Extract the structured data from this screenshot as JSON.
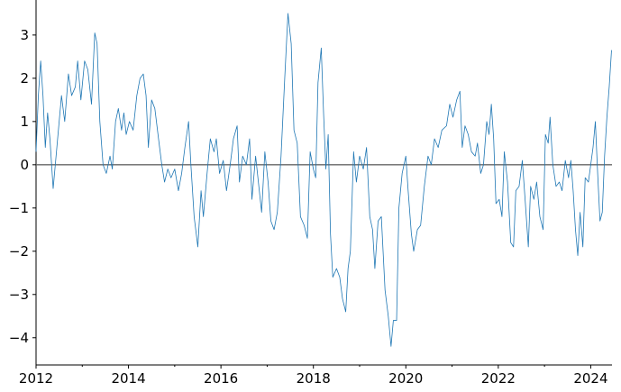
{
  "chart_data": {
    "type": "line",
    "x": [
      2012.0,
      2012.05,
      2012.1,
      2012.15,
      2012.2,
      2012.25,
      2012.3,
      2012.37,
      2012.45,
      2012.55,
      2012.62,
      2012.7,
      2012.77,
      2012.85,
      2012.9,
      2012.97,
      2013.05,
      2013.12,
      2013.2,
      2013.27,
      2013.32,
      2013.38,
      2013.45,
      2013.52,
      2013.6,
      2013.65,
      2013.72,
      2013.78,
      2013.85,
      2013.9,
      2013.95,
      2014.02,
      2014.1,
      2014.18,
      2014.25,
      2014.32,
      2014.38,
      2014.43,
      2014.5,
      2014.57,
      2014.65,
      2014.72,
      2014.78,
      2014.85,
      2014.92,
      2015.0,
      2015.08,
      2015.15,
      2015.22,
      2015.3,
      2015.35,
      2015.42,
      2015.5,
      2015.57,
      2015.62,
      2015.7,
      2015.77,
      2015.85,
      2015.9,
      2015.97,
      2016.05,
      2016.12,
      2016.2,
      2016.27,
      2016.35,
      2016.4,
      2016.47,
      2016.55,
      2016.62,
      2016.67,
      2016.75,
      2016.82,
      2016.88,
      2016.95,
      2017.02,
      2017.08,
      2017.15,
      2017.22,
      2017.3,
      2017.38,
      2017.45,
      2017.52,
      2017.58,
      2017.65,
      2017.72,
      2017.8,
      2017.87,
      2017.93,
      2018.0,
      2018.05,
      2018.1,
      2018.17,
      2018.22,
      2018.27,
      2018.32,
      2018.37,
      2018.42,
      2018.5,
      2018.57,
      2018.63,
      2018.7,
      2018.75,
      2018.8,
      2018.87,
      2018.93,
      2019.0,
      2019.08,
      2019.15,
      2019.22,
      2019.28,
      2019.33,
      2019.4,
      2019.47,
      2019.55,
      2019.62,
      2019.68,
      2019.73,
      2019.8,
      2019.85,
      2019.92,
      2020.0,
      2020.05,
      2020.12,
      2020.17,
      2020.25,
      2020.32,
      2020.4,
      2020.48,
      2020.55,
      2020.62,
      2020.7,
      2020.78,
      2020.88,
      2020.95,
      2021.02,
      2021.1,
      2021.17,
      2021.22,
      2021.28,
      2021.35,
      2021.42,
      2021.5,
      2021.55,
      2021.62,
      2021.68,
      2021.75,
      2021.8,
      2021.85,
      2021.9,
      2021.95,
      2022.02,
      2022.08,
      2022.13,
      2022.2,
      2022.27,
      2022.33,
      2022.38,
      2022.45,
      2022.52,
      2022.58,
      2022.65,
      2022.7,
      2022.77,
      2022.83,
      2022.9,
      2022.97,
      2023.02,
      2023.08,
      2023.12,
      2023.18,
      2023.25,
      2023.32,
      2023.38,
      2023.45,
      2023.52,
      2023.57,
      2023.62,
      2023.67,
      2023.72,
      2023.77,
      2023.83,
      2023.88,
      2023.95,
      2024.0,
      2024.05,
      2024.1,
      2024.15,
      2024.2,
      2024.25,
      2024.3,
      2024.35,
      2024.4,
      2024.45
    ],
    "values": [
      0.3,
      1.6,
      2.4,
      1.6,
      0.4,
      1.2,
      0.6,
      -0.55,
      0.4,
      1.6,
      1.0,
      2.1,
      1.6,
      1.8,
      2.4,
      1.5,
      2.4,
      2.2,
      1.4,
      3.05,
      2.8,
      1.0,
      0.0,
      -0.2,
      0.2,
      -0.1,
      1.0,
      1.3,
      0.8,
      1.2,
      0.7,
      1.0,
      0.8,
      1.6,
      2.0,
      2.1,
      1.6,
      0.4,
      1.5,
      1.3,
      0.6,
      0.0,
      -0.4,
      -0.1,
      -0.3,
      -0.1,
      -0.6,
      -0.2,
      0.4,
      1.0,
      0.0,
      -1.2,
      -1.9,
      -0.6,
      -1.2,
      -0.2,
      0.6,
      0.3,
      0.6,
      -0.2,
      0.1,
      -0.6,
      0.0,
      0.6,
      0.9,
      -0.4,
      0.2,
      0.0,
      0.6,
      -0.8,
      0.2,
      -0.5,
      -1.1,
      0.3,
      -0.4,
      -1.3,
      -1.5,
      -1.1,
      0.2,
      2.0,
      3.5,
      2.8,
      0.8,
      0.5,
      -1.2,
      -1.4,
      -1.7,
      0.3,
      -0.1,
      -0.3,
      1.9,
      2.7,
      1.2,
      -0.1,
      0.7,
      -1.6,
      -2.6,
      -2.4,
      -2.6,
      -3.1,
      -3.4,
      -2.4,
      -2.0,
      0.3,
      -0.4,
      0.2,
      -0.1,
      0.4,
      -1.2,
      -1.5,
      -2.4,
      -1.3,
      -1.2,
      -2.9,
      -3.5,
      -4.2,
      -3.6,
      -3.6,
      -1.0,
      -0.2,
      0.2,
      -0.6,
      -1.6,
      -2.0,
      -1.5,
      -1.4,
      -0.5,
      0.2,
      0.0,
      0.6,
      0.4,
      0.8,
      0.9,
      1.4,
      1.1,
      1.5,
      1.7,
      0.4,
      0.9,
      0.7,
      0.3,
      0.2,
      0.5,
      -0.2,
      0.0,
      1.0,
      0.7,
      1.4,
      0.6,
      -0.9,
      -0.8,
      -1.2,
      0.3,
      -0.4,
      -1.8,
      -1.9,
      -0.6,
      -0.5,
      0.1,
      -0.8,
      -1.9,
      -0.5,
      -0.8,
      -0.4,
      -1.2,
      -1.5,
      0.7,
      0.5,
      1.1,
      0.0,
      -0.5,
      -0.4,
      -0.6,
      0.1,
      -0.3,
      0.1,
      -0.6,
      -1.5,
      -2.1,
      -1.1,
      -1.9,
      -0.3,
      -0.4,
      0.0,
      0.4,
      1.0,
      -0.2,
      -1.3,
      -1.1,
      0.2,
      1.1,
      1.8,
      2.65
    ],
    "color": "#1f77b4",
    "xlim": [
      2012,
      2024.46
    ],
    "xticks": [
      2012,
      2014,
      2016,
      2018,
      2020,
      2022,
      2024
    ],
    "xticks_minor": [
      2013,
      2015,
      2017,
      2019,
      2021,
      2023
    ],
    "ylim": [
      -4.63,
      3.81
    ],
    "yticks": [
      {
        "value": -4,
        "label": "−4"
      },
      {
        "value": -3,
        "label": "−3"
      },
      {
        "value": -2,
        "label": "−2"
      },
      {
        "value": -1,
        "label": "−1"
      },
      0,
      1,
      2,
      3
    ],
    "hline": 0,
    "hline_color": "#666666"
  }
}
